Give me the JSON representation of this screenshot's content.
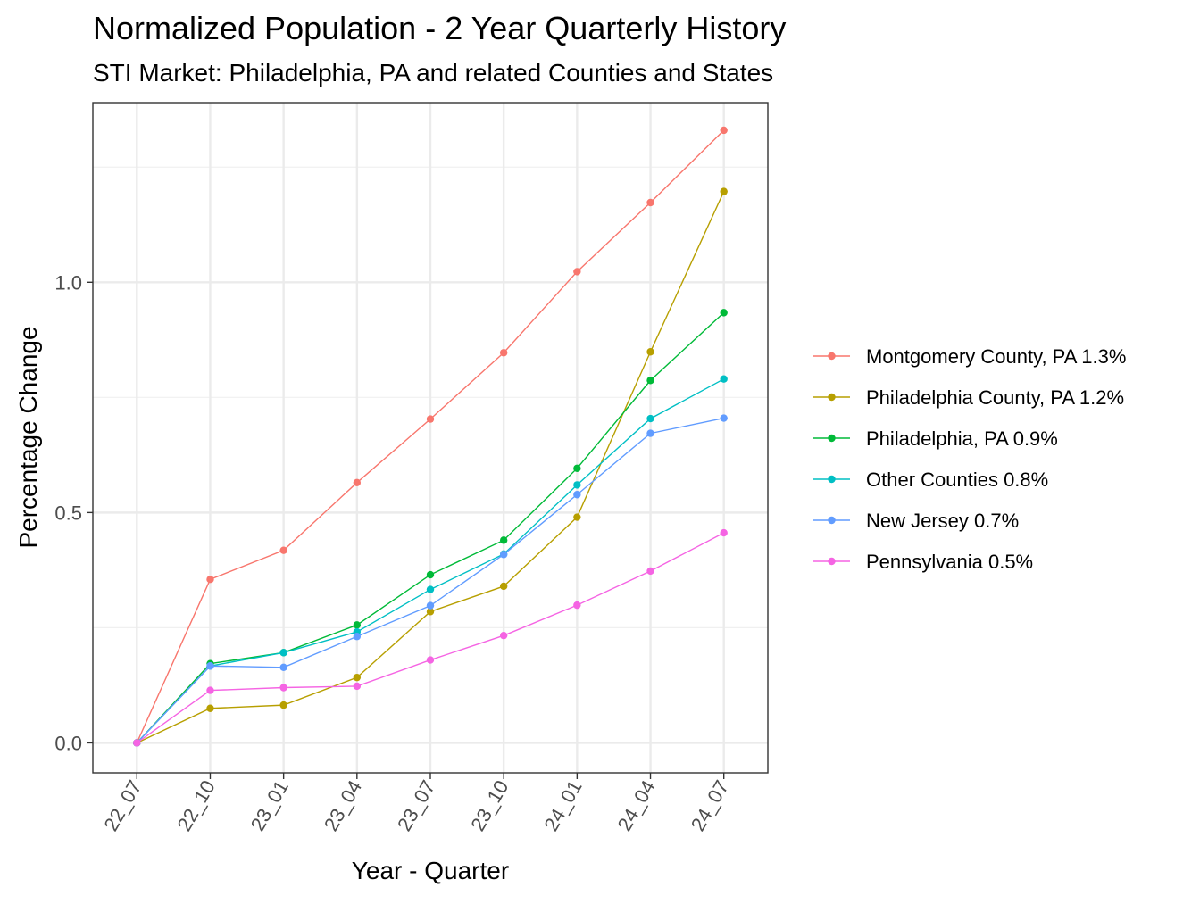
{
  "chart_data": {
    "type": "line",
    "title": "Normalized Population - 2 Year Quarterly History",
    "subtitle": "STI Market: Philadelphia, PA and related Counties and States",
    "xlabel": "Year - Quarter",
    "ylabel": "Percentage Change",
    "categories": [
      "22_07",
      "22_10",
      "23_01",
      "23_04",
      "23_07",
      "23_10",
      "24_01",
      "24_04",
      "24_07"
    ],
    "y_ticks": [
      "0.0",
      "0.5",
      "1.0"
    ],
    "y_tick_values": [
      0.0,
      0.5,
      1.0
    ],
    "ylim": [
      -0.065,
      1.39
    ],
    "grid": true,
    "legend_position": "right",
    "series": [
      {
        "name": "Montgomery County, PA 1.3%",
        "color": "#F8766D",
        "values": [
          0.0,
          0.355,
          0.418,
          0.565,
          0.703,
          0.847,
          1.023,
          1.173,
          1.33
        ]
      },
      {
        "name": "Philadelphia County, PA 1.2%",
        "color": "#B79F00",
        "values": [
          0.0,
          0.075,
          0.082,
          0.142,
          0.285,
          0.34,
          0.49,
          0.849,
          1.197
        ]
      },
      {
        "name": "Philadelphia, PA 0.9%",
        "color": "#00BA38",
        "values": [
          0.0,
          0.172,
          0.196,
          0.256,
          0.365,
          0.44,
          0.596,
          0.787,
          0.934
        ]
      },
      {
        "name": "Other Counties 0.8%",
        "color": "#00BFC4",
        "values": [
          0.0,
          0.167,
          0.196,
          0.241,
          0.333,
          0.41,
          0.56,
          0.704,
          0.79
        ]
      },
      {
        "name": "New Jersey 0.7%",
        "color": "#619CFF",
        "values": [
          0.0,
          0.167,
          0.164,
          0.231,
          0.298,
          0.409,
          0.539,
          0.672,
          0.705
        ]
      },
      {
        "name": "Pennsylvania 0.5%",
        "color": "#F564E3",
        "values": [
          0.0,
          0.114,
          0.12,
          0.123,
          0.18,
          0.233,
          0.299,
          0.373,
          0.456
        ]
      }
    ]
  }
}
